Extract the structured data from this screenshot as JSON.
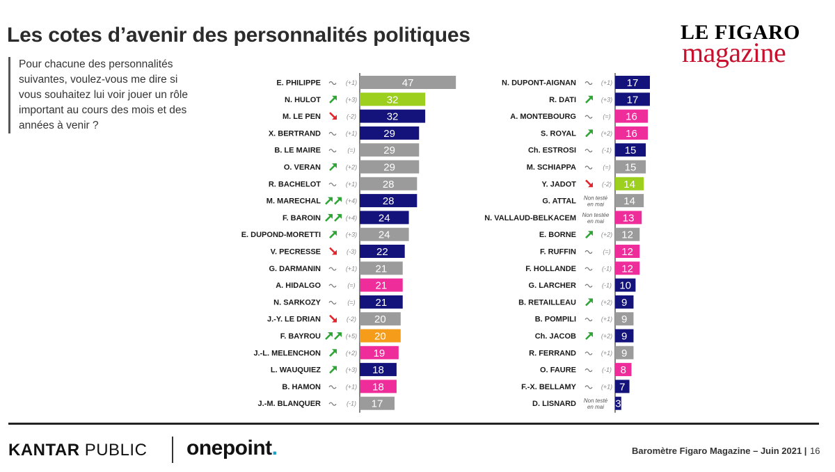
{
  "header": {
    "title": "Les cotes d’avenir des personnalités politiques",
    "logo_line1": "LE FIGARO",
    "logo_line2": "magazine"
  },
  "question": "Pour chacune des personnalités suivantes, voulez-vous me dire si vous souhaitez lui voir jouer un rôle important au cours des mois et des années à venir ?",
  "colors": {
    "grey": "#9b9b9b",
    "navy": "#14137c",
    "green": "#9dcf1e",
    "pink": "#ee2d9b",
    "orange": "#f59c1a",
    "arrow_up": "#2fa536",
    "arrow_down": "#e3262d",
    "label": "#1a1a1a",
    "change": "#8a8a8a"
  },
  "chart_data": {
    "type": "bar",
    "orientation": "horizontal",
    "xlim": [
      0,
      50
    ],
    "panels": [
      {
        "name": "left",
        "items": [
          {
            "name": "E. PHILIPPE",
            "value": 47,
            "color": "grey",
            "trend": "stable",
            "change": "(+1)"
          },
          {
            "name": "N. HULOT",
            "value": 32,
            "color": "green",
            "trend": "up",
            "change": "(+3)"
          },
          {
            "name": "M. LE PEN",
            "value": 32,
            "color": "navy",
            "trend": "down",
            "change": "(-2)"
          },
          {
            "name": "X. BERTRAND",
            "value": 29,
            "color": "navy",
            "trend": "stable",
            "change": "(+1)"
          },
          {
            "name": "B. LE MAIRE",
            "value": 29,
            "color": "grey",
            "trend": "stable",
            "change": "(=)"
          },
          {
            "name": "O. VERAN",
            "value": 29,
            "color": "grey",
            "trend": "up",
            "change": "(+2)"
          },
          {
            "name": "R. BACHELOT",
            "value": 28,
            "color": "grey",
            "trend": "stable",
            "change": "(+1)"
          },
          {
            "name": "M. MARECHAL",
            "value": 28,
            "color": "navy",
            "trend": "up2",
            "change": "(+4)"
          },
          {
            "name": "F. BAROIN",
            "value": 24,
            "color": "navy",
            "trend": "up2",
            "change": "(+4)"
          },
          {
            "name": "E. DUPOND-MORETTI",
            "value": 24,
            "color": "grey",
            "trend": "up",
            "change": "(+3)"
          },
          {
            "name": "V. PECRESSE",
            "value": 22,
            "color": "navy",
            "trend": "down",
            "change": "(-3)"
          },
          {
            "name": "G. DARMANIN",
            "value": 21,
            "color": "grey",
            "trend": "stable",
            "change": "(+1)"
          },
          {
            "name": "A. HIDALGO",
            "value": 21,
            "color": "pink",
            "trend": "stable",
            "change": "(=)"
          },
          {
            "name": "N. SARKOZY",
            "value": 21,
            "color": "navy",
            "trend": "stable",
            "change": "(=)"
          },
          {
            "name": "J.-Y. LE DRIAN",
            "value": 20,
            "color": "grey",
            "trend": "down",
            "change": "(-2)"
          },
          {
            "name": "F. BAYROU",
            "value": 20,
            "color": "orange",
            "trend": "up2",
            "change": "(+5)"
          },
          {
            "name": "J.-L. MELENCHON",
            "value": 19,
            "color": "pink",
            "trend": "up",
            "change": "(+2)"
          },
          {
            "name": "L. WAUQUIEZ",
            "value": 18,
            "color": "navy",
            "trend": "up",
            "change": "(+3)"
          },
          {
            "name": "B. HAMON",
            "value": 18,
            "color": "pink",
            "trend": "stable",
            "change": "(+1)"
          },
          {
            "name": "J.-M. BLANQUER",
            "value": 17,
            "color": "grey",
            "trend": "stable",
            "change": "(-1)"
          }
        ]
      },
      {
        "name": "right",
        "items": [
          {
            "name": "N. DUPONT-AIGNAN",
            "value": 17,
            "color": "navy",
            "trend": "stable",
            "change": "(+1)"
          },
          {
            "name": "R. DATI",
            "value": 17,
            "color": "navy",
            "trend": "up",
            "change": "(+3)"
          },
          {
            "name": "A. MONTEBOURG",
            "value": 16,
            "color": "pink",
            "trend": "stable",
            "change": "(=)"
          },
          {
            "name": "S. ROYAL",
            "value": 16,
            "color": "pink",
            "trend": "up",
            "change": "(+2)"
          },
          {
            "name": "Ch. ESTROSI",
            "value": 15,
            "color": "navy",
            "trend": "stable",
            "change": "(-1)"
          },
          {
            "name": "M. SCHIAPPA",
            "value": 15,
            "color": "grey",
            "trend": "stable",
            "change": "(=)"
          },
          {
            "name": "Y. JADOT",
            "value": 14,
            "color": "green",
            "trend": "down",
            "change": "(-2)"
          },
          {
            "name": "G. ATTAL",
            "value": 14,
            "color": "grey",
            "trend": "none",
            "change": "",
            "note1": "Non testé",
            "note2": "en mai"
          },
          {
            "name": "N. VALLAUD-BELKACEM",
            "value": 13,
            "color": "pink",
            "trend": "none",
            "change": "",
            "note1": "Non testée",
            "note2": "en mai"
          },
          {
            "name": "E. BORNE",
            "value": 12,
            "color": "grey",
            "trend": "up",
            "change": "(+2)"
          },
          {
            "name": "F. RUFFIN",
            "value": 12,
            "color": "pink",
            "trend": "stable",
            "change": "(=)"
          },
          {
            "name": "F. HOLLANDE",
            "value": 12,
            "color": "pink",
            "trend": "stable",
            "change": "(-1)"
          },
          {
            "name": "G. LARCHER",
            "value": 10,
            "color": "navy",
            "trend": "stable",
            "change": "(-1)"
          },
          {
            "name": "B. RETAILLEAU",
            "value": 9,
            "color": "navy",
            "trend": "up",
            "change": "(+2)"
          },
          {
            "name": "B. POMPILI",
            "value": 9,
            "color": "grey",
            "trend": "stable",
            "change": "(+1)"
          },
          {
            "name": "Ch. JACOB",
            "value": 9,
            "color": "navy",
            "trend": "up",
            "change": "(+2)"
          },
          {
            "name": "R. FERRAND",
            "value": 9,
            "color": "grey",
            "trend": "stable",
            "change": "(+1)"
          },
          {
            "name": "O. FAURE",
            "value": 8,
            "color": "pink",
            "trend": "stable",
            "change": "(-1)"
          },
          {
            "name": "F.-X. BELLAMY",
            "value": 7,
            "color": "navy",
            "trend": "stable",
            "change": "(+1)"
          },
          {
            "name": "D. LISNARD",
            "value": 3,
            "color": "navy",
            "trend": "none",
            "change": "",
            "note1": "Non testé",
            "note2": "en mai"
          }
        ]
      }
    ]
  },
  "footer": {
    "kantar_bold": "KANTAR",
    "kantar_light": " PUBLIC",
    "onepoint_word": "onepoint",
    "onepoint_dot": ".",
    "source": "Baromètre Figaro Magazine – Juin 2021 |",
    "page": "16"
  }
}
